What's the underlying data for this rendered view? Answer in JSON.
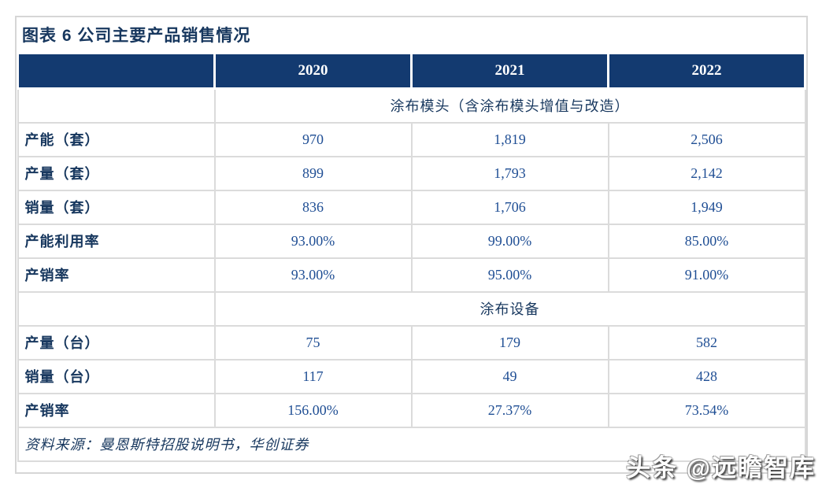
{
  "title": "图表 6  公司主要产品销售情况",
  "colors": {
    "header_bg": "#133a70",
    "header_text": "#ffffff",
    "title_text": "#17375e",
    "label_text": "#17375e",
    "value_text": "#1f4e94",
    "grid_border": "#dbdbdb"
  },
  "table": {
    "years": [
      "2020",
      "2021",
      "2022"
    ],
    "sections": [
      {
        "header": "涂布模头（含涂布模头增值与改造）",
        "rows": [
          {
            "label": "产能（套）",
            "values": [
              "970",
              "1,819",
              "2,506"
            ]
          },
          {
            "label": "产量（套）",
            "values": [
              "899",
              "1,793",
              "2,142"
            ]
          },
          {
            "label": "销量（套）",
            "values": [
              "836",
              "1,706",
              "1,949"
            ]
          },
          {
            "label": "产能利用率",
            "values": [
              "93.00%",
              "99.00%",
              "85.00%"
            ]
          },
          {
            "label": "产销率",
            "values": [
              "93.00%",
              "95.00%",
              "91.00%"
            ]
          }
        ]
      },
      {
        "header": "涂布设备",
        "rows": [
          {
            "label": "产量（台）",
            "values": [
              "75",
              "179",
              "582"
            ]
          },
          {
            "label": "销量（台）",
            "values": [
              "117",
              "49",
              "428"
            ]
          },
          {
            "label": "产销率",
            "values": [
              "156.00%",
              "27.37%",
              "73.54%"
            ]
          }
        ]
      }
    ],
    "source": "资料来源：曼恩斯特招股说明书，华创证券"
  },
  "watermark": "头条 @远瞻智库"
}
